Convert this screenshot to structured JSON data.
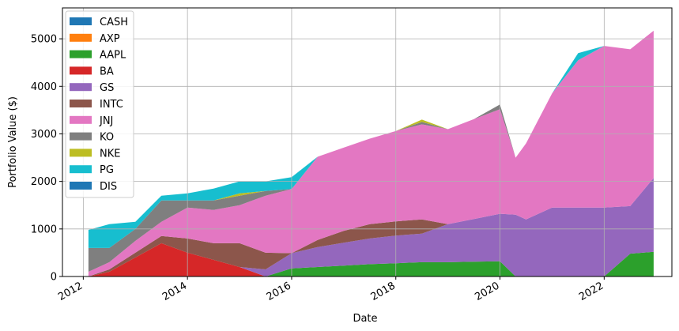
{
  "chart_data": {
    "type": "area",
    "title": "",
    "xlabel": "Date",
    "ylabel": "Portfolio Value ($)",
    "xlim": [
      2011.6,
      2023.3
    ],
    "ylim": [
      0,
      5650
    ],
    "x_ticks": [
      2012,
      2014,
      2016,
      2018,
      2020,
      2022
    ],
    "x_tick_labels": [
      "2012",
      "2014",
      "2016",
      "2018",
      "2020",
      "2022"
    ],
    "y_ticks": [
      0,
      1000,
      2000,
      3000,
      4000,
      5000
    ],
    "y_tick_labels": [
      "0",
      "1000",
      "2000",
      "3000",
      "4000",
      "5000"
    ],
    "grid": true,
    "legend_position": "top-left",
    "x": [
      2012.1,
      2012.5,
      2013.0,
      2013.5,
      2014.0,
      2014.5,
      2015.0,
      2015.5,
      2016.0,
      2016.5,
      2017.0,
      2017.5,
      2018.0,
      2018.5,
      2019.0,
      2019.5,
      2020.0,
      2020.3,
      2020.5,
      2021.0,
      2021.5,
      2022.0,
      2022.5,
      2022.95
    ],
    "series": [
      {
        "name": "CASH",
        "color": "#1f77b4",
        "values": [
          0,
          0,
          0,
          0,
          0,
          0,
          0,
          0,
          0,
          0,
          0,
          0,
          0,
          0,
          0,
          0,
          0,
          0,
          0,
          0,
          0,
          0,
          0,
          0
        ]
      },
      {
        "name": "AXP",
        "color": "#ff7f0e",
        "values": [
          0,
          0,
          0,
          0,
          0,
          0,
          0,
          0,
          0,
          0,
          0,
          0,
          0,
          0,
          0,
          0,
          0,
          0,
          0,
          0,
          0,
          0,
          0,
          0
        ]
      },
      {
        "name": "AAPL",
        "color": "#2ca02c",
        "values": [
          0,
          0,
          0,
          0,
          0,
          0,
          0,
          0,
          170,
          200,
          230,
          260,
          280,
          300,
          300,
          310,
          320,
          0,
          0,
          0,
          0,
          0,
          480,
          520
        ]
      },
      {
        "name": "BA",
        "color": "#d62728",
        "values": [
          0,
          100,
          400,
          700,
          500,
          350,
          200,
          0,
          0,
          0,
          0,
          0,
          0,
          0,
          0,
          0,
          0,
          0,
          0,
          0,
          0,
          0,
          0,
          0
        ]
      },
      {
        "name": "GS",
        "color": "#9467bd",
        "values": [
          0,
          0,
          0,
          0,
          0,
          0,
          0,
          150,
          320,
          420,
          480,
          540,
          580,
          600,
          800,
          900,
          1000,
          1300,
          1200,
          1450,
          1450,
          1450,
          1000,
          1550
        ]
      },
      {
        "name": "INTC",
        "color": "#8c564b",
        "values": [
          0,
          50,
          100,
          150,
          300,
          350,
          500,
          350,
          0,
          150,
          250,
          300,
          300,
          300,
          0,
          0,
          0,
          0,
          0,
          0,
          0,
          0,
          0,
          0
        ]
      },
      {
        "name": "JNJ",
        "color": "#e377c2",
        "values": [
          100,
          150,
          250,
          300,
          650,
          700,
          800,
          1200,
          1350,
          1750,
          1750,
          1800,
          1900,
          2000,
          2000,
          2100,
          2200,
          1200,
          1600,
          2400,
          3100,
          3400,
          3300,
          3100
        ]
      },
      {
        "name": "KO",
        "color": "#7f7f7f",
        "values": [
          500,
          300,
          250,
          450,
          150,
          200,
          200,
          100,
          0,
          0,
          0,
          0,
          0,
          50,
          0,
          0,
          100,
          0,
          0,
          0,
          0,
          0,
          0,
          0
        ]
      },
      {
        "name": "NKE",
        "color": "#bcbd22",
        "values": [
          0,
          0,
          0,
          0,
          0,
          0,
          50,
          0,
          0,
          0,
          0,
          0,
          0,
          50,
          0,
          0,
          0,
          0,
          0,
          0,
          0,
          0,
          0,
          0
        ]
      },
      {
        "name": "PG",
        "color": "#17becf",
        "values": [
          380,
          500,
          150,
          100,
          150,
          250,
          250,
          200,
          250,
          0,
          0,
          0,
          0,
          0,
          0,
          0,
          0,
          0,
          0,
          0,
          150,
          0,
          0,
          0
        ]
      },
      {
        "name": "DIS",
        "color": "#1f77b4",
        "values": [
          0,
          0,
          0,
          0,
          0,
          0,
          0,
          0,
          0,
          0,
          0,
          0,
          0,
          0,
          0,
          0,
          0,
          0,
          0,
          0,
          0,
          0,
          0,
          0
        ]
      }
    ]
  }
}
